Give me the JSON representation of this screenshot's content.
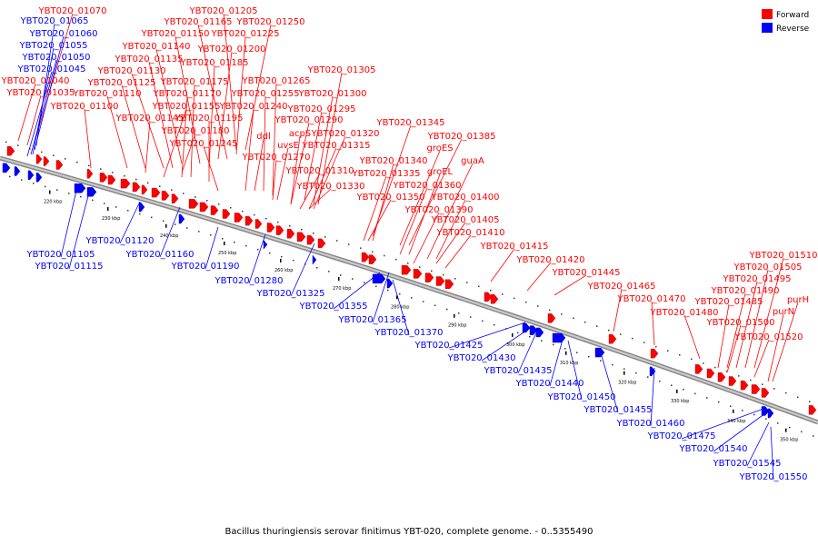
{
  "caption": "Bacillus thuringiensis serovar finitimus YBT-020, complete genome. - 0..5355490",
  "legend": [
    {
      "label": "Forward",
      "color": "#ff0000"
    },
    {
      "label": "Reverse",
      "color": "#0000ff"
    }
  ],
  "colors": {
    "forward": "#ff0000",
    "reverse": "#0000ff",
    "backbone": "#888888"
  },
  "ticks": [
    "220 kbp",
    "230 kbp",
    "240 kbp",
    "250 kbp",
    "260 kbp",
    "270 kbp",
    "280 kbp",
    "290 kbp",
    "300 kbp",
    "310 kbp",
    "320 kbp",
    "330 kbp",
    "340 kbp",
    "350 kbp"
  ],
  "forward_labels": [
    "YBT020_01070",
    "YBT020_01205",
    "YBT020_01165",
    "YBT020_01250",
    "YBT020_01150",
    "YBT020_01225",
    "YBT020_01140",
    "YBT020_01200",
    "YBT020_01135",
    "YBT020_01185",
    "YBT020_01305",
    "YBT020_01130",
    "YBT020_01175",
    "YBT020_01265",
    "YBT020_01125",
    "YBT020_01170",
    "YBT020_01255",
    "YBT020_01300",
    "YBT020_01110",
    "YBT020_01155",
    "YBT020_01240",
    "YBT020_01295",
    "YBT020_01100",
    "YBT020_01145",
    "YBT020_01195",
    "YBT020_01290",
    "YBT020_01345",
    "YBT020_01180",
    "acpS",
    "YBT020_01320",
    "YBT020_01385",
    "ddl",
    "uvsE",
    "YBT020_01315",
    "groES",
    "YBT020_01245",
    "YBT020_01270",
    "YBT020_01340",
    "guaA",
    "YBT020_01310",
    "YBT020_01335",
    "groEL",
    "YBT020_01330",
    "YBT020_01360",
    "YBT020_01350",
    "YBT020_01400",
    "YBT020_01390",
    "YBT020_01405",
    "YBT020_01410",
    "YBT020_01415",
    "YBT020_01420",
    "YBT020_01445",
    "YBT020_01465",
    "YBT020_01470",
    "YBT020_01480",
    "YBT020_01510",
    "YBT020_01505",
    "YBT020_01495",
    "YBT020_01490",
    "YBT020_01485",
    "purH",
    "purN",
    "YBT020_01500",
    "YBT020_01520",
    "YBT020_01040",
    "YBT020_01035"
  ],
  "reverse_labels": [
    "YBT020_01065",
    "YBT020_01060",
    "YBT020_01055",
    "YBT020_01050",
    "YBT020_01045",
    "YBT020_01105",
    "YBT020_01115",
    "YBT020_01120",
    "YBT020_01160",
    "YBT020_01190",
    "YBT020_01280",
    "YBT020_01325",
    "YBT020_01355",
    "YBT020_01365",
    "YBT020_01370",
    "YBT020_01425",
    "YBT020_01430",
    "YBT020_01435",
    "YBT020_01440",
    "YBT020_01450",
    "YBT020_01455",
    "YBT020_01460",
    "YBT020_01475",
    "YBT020_01540",
    "YBT020_01545",
    "YBT020_01550"
  ]
}
